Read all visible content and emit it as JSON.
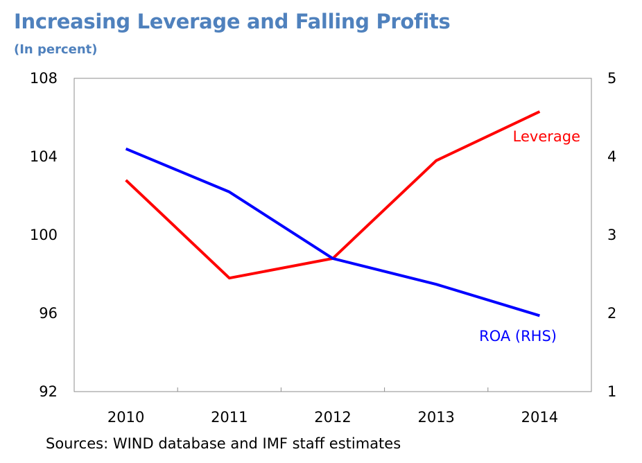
{
  "chart_data": {
    "type": "line",
    "title": "Increasing Leverage and Falling Profits",
    "subtitle": "(In percent)",
    "x": [
      "2010",
      "2011",
      "2012",
      "2013",
      "2014"
    ],
    "series": [
      {
        "name": "Leverage",
        "axis": "left",
        "color": "#ff0000",
        "values": [
          102.8,
          97.8,
          98.8,
          103.8,
          106.3
        ]
      },
      {
        "name": "ROA (RHS)",
        "axis": "right",
        "color": "#0000ff",
        "values": [
          4.1,
          3.55,
          2.7,
          2.37,
          1.97
        ]
      }
    ],
    "y_left": {
      "min": 92,
      "max": 108,
      "ticks": [
        "92",
        "96",
        "100",
        "104",
        "108"
      ]
    },
    "y_right": {
      "min": 1,
      "max": 5,
      "ticks": [
        "1",
        "2",
        "3",
        "4",
        "5"
      ]
    },
    "grid": false,
    "legend": "inline labels near lines",
    "source": "Sources: WIND database and IMF staff estimates"
  }
}
